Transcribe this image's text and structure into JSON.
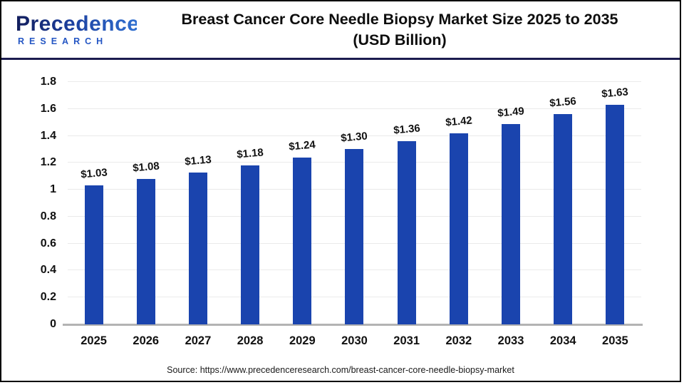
{
  "logo": {
    "brand": "Precedence",
    "sub": "RESEARCH"
  },
  "header": {
    "title_line1": "Breast Cancer Core Needle Biopsy Market Size 2025 to 2035",
    "title_line2": "(USD Billion)"
  },
  "footer": {
    "source": "Source: https://www.precedenceresearch.com/breast-cancer-core-needle-biopsy-market"
  },
  "colors": {
    "bar": "#1a44ae",
    "divider": "#1b1b4f",
    "grid": "#eaeaea",
    "axis_line": "#b3b3b3",
    "text": "#111111",
    "logo_dark": "#121d5b",
    "logo_light": "#2f6fd0",
    "research_blue": "#2456c4"
  },
  "chart_data": {
    "type": "bar",
    "title": "Breast Cancer Core Needle Biopsy Market Size 2025 to 2035 (USD Billion)",
    "xlabel": "",
    "ylabel": "",
    "categories": [
      "2025",
      "2026",
      "2027",
      "2028",
      "2029",
      "2030",
      "2031",
      "2032",
      "2033",
      "2034",
      "2035"
    ],
    "values": [
      1.03,
      1.08,
      1.13,
      1.18,
      1.24,
      1.3,
      1.36,
      1.42,
      1.49,
      1.56,
      1.63
    ],
    "labels": [
      "$1.03",
      "$1.08",
      "$1.13",
      "$1.18",
      "$1.24",
      "$1.30",
      "$1.36",
      "$1.42",
      "$1.49",
      "$1.56",
      "$1.63"
    ],
    "ylim": [
      0,
      1.8
    ],
    "yticks": [
      0,
      0.2,
      0.4,
      0.6,
      0.8,
      1,
      1.2,
      1.4,
      1.6,
      1.8
    ],
    "ytick_labels": [
      "0",
      "0.2",
      "0.4",
      "0.6",
      "0.8",
      "1",
      "1.2",
      "1.4",
      "1.6",
      "1.8"
    ],
    "grid": true,
    "legend": "none",
    "unit": "USD Billion"
  }
}
